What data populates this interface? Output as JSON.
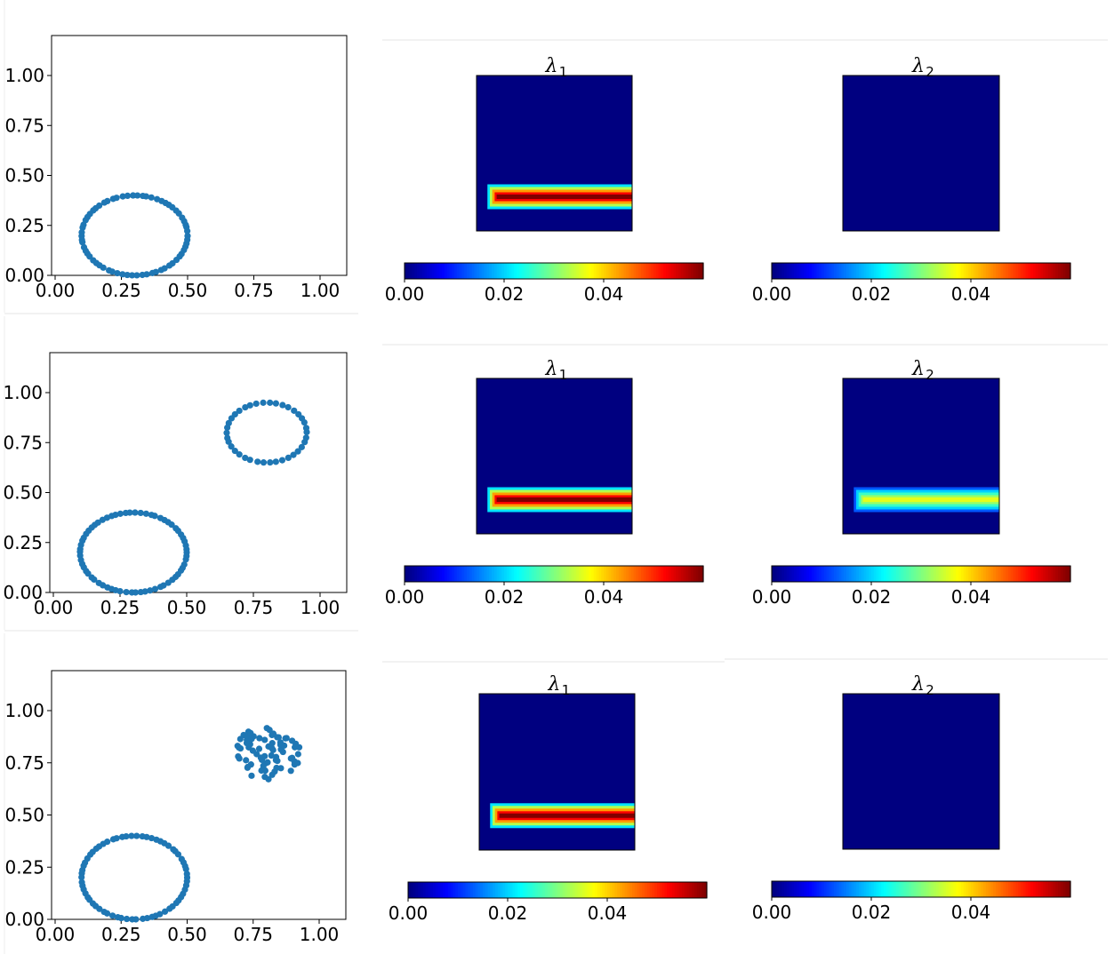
{
  "chart_data": [
    {
      "row": 1,
      "panels": [
        {
          "type": "scatter",
          "title": "",
          "xlabel": "",
          "ylabel": "",
          "xlim": [
            0,
            1.2
          ],
          "ylim": [
            0,
            1.2
          ],
          "xticks": [
            "0.00",
            "0.25",
            "0.50",
            "0.75",
            "1.00"
          ],
          "yticks": [
            "0.00",
            "0.25",
            "0.50",
            "0.75",
            "1.00"
          ],
          "marker_color": "#1f77b4",
          "series": [
            {
              "shape": "ring",
              "center": [
                0.3,
                0.2
              ],
              "radius": [
                0.2,
                0.2
              ],
              "points": 66
            }
          ]
        },
        {
          "type": "heatmap",
          "title_symbol": "λ",
          "title_index": "1",
          "colormap": "jet",
          "colorbar": {
            "ticks": [
              "0.00",
              "0.02",
              "0.04"
            ],
            "range": [
              0,
              0.06
            ]
          },
          "band": {
            "row_fraction": 0.78,
            "start_fraction": 0.07,
            "peak": 0.06
          }
        },
        {
          "type": "heatmap",
          "title_symbol": "λ",
          "title_index": "2",
          "colormap": "jet",
          "colorbar": {
            "ticks": [
              "0.00",
              "0.02",
              "0.04"
            ],
            "range": [
              0,
              0.06
            ]
          },
          "band": null
        }
      ]
    },
    {
      "row": 2,
      "panels": [
        {
          "type": "scatter",
          "title": "",
          "xlabel": "",
          "ylabel": "",
          "xlim": [
            0,
            1.2
          ],
          "ylim": [
            0,
            1.2
          ],
          "xticks": [
            "0.00",
            "0.25",
            "0.50",
            "0.75",
            "1.00"
          ],
          "yticks": [
            "0.00",
            "0.25",
            "0.50",
            "0.75",
            "1.00"
          ],
          "marker_color": "#1f77b4",
          "series": [
            {
              "shape": "ring",
              "center": [
                0.3,
                0.2
              ],
              "radius": [
                0.2,
                0.2
              ],
              "points": 66
            },
            {
              "shape": "ring",
              "center": [
                0.8,
                0.8
              ],
              "radius": [
                0.15,
                0.15
              ],
              "points": 38
            }
          ]
        },
        {
          "type": "heatmap",
          "title_symbol": "λ",
          "title_index": "1",
          "colormap": "jet",
          "colorbar": {
            "ticks": [
              "0.00",
              "0.02",
              "0.04"
            ],
            "range": [
              0,
              0.06
            ]
          },
          "band": {
            "row_fraction": 0.78,
            "start_fraction": 0.07,
            "peak": 0.06
          }
        },
        {
          "type": "heatmap",
          "title_symbol": "λ",
          "title_index": "2",
          "colormap": "jet",
          "colorbar": {
            "ticks": [
              "0.00",
              "0.02",
              "0.04"
            ],
            "range": [
              0,
              0.06
            ]
          },
          "band": {
            "row_fraction": 0.78,
            "start_fraction": 0.07,
            "peak": 0.036
          }
        }
      ]
    },
    {
      "row": 3,
      "panels": [
        {
          "type": "scatter",
          "title": "",
          "xlabel": "",
          "ylabel": "",
          "xlim": [
            0,
            1.2
          ],
          "ylim": [
            0,
            1.2
          ],
          "xticks": [
            "0.00",
            "0.25",
            "0.50",
            "0.75",
            "1.00"
          ],
          "yticks": [
            "0.00",
            "0.25",
            "0.50",
            "0.75",
            "1.00"
          ],
          "marker_color": "#1f77b4",
          "series": [
            {
              "shape": "ring",
              "center": [
                0.3,
                0.2
              ],
              "radius": [
                0.2,
                0.2
              ],
              "points": 66
            },
            {
              "shape": "cloud",
              "center": [
                0.8,
                0.8
              ],
              "radius": [
                0.13,
                0.13
              ],
              "points": 75
            }
          ]
        },
        {
          "type": "heatmap",
          "title_symbol": "λ",
          "title_index": "1",
          "colormap": "jet",
          "colorbar": {
            "ticks": [
              "0.00",
              "0.02",
              "0.04"
            ],
            "range": [
              0,
              0.06
            ]
          },
          "band": {
            "row_fraction": 0.78,
            "start_fraction": 0.07,
            "peak": 0.06
          }
        },
        {
          "type": "heatmap",
          "title_symbol": "λ",
          "title_index": "2",
          "colormap": "jet",
          "colorbar": {
            "ticks": [
              "0.00",
              "0.02",
              "0.04"
            ],
            "range": [
              0,
              0.06
            ]
          },
          "band": null
        }
      ]
    }
  ]
}
